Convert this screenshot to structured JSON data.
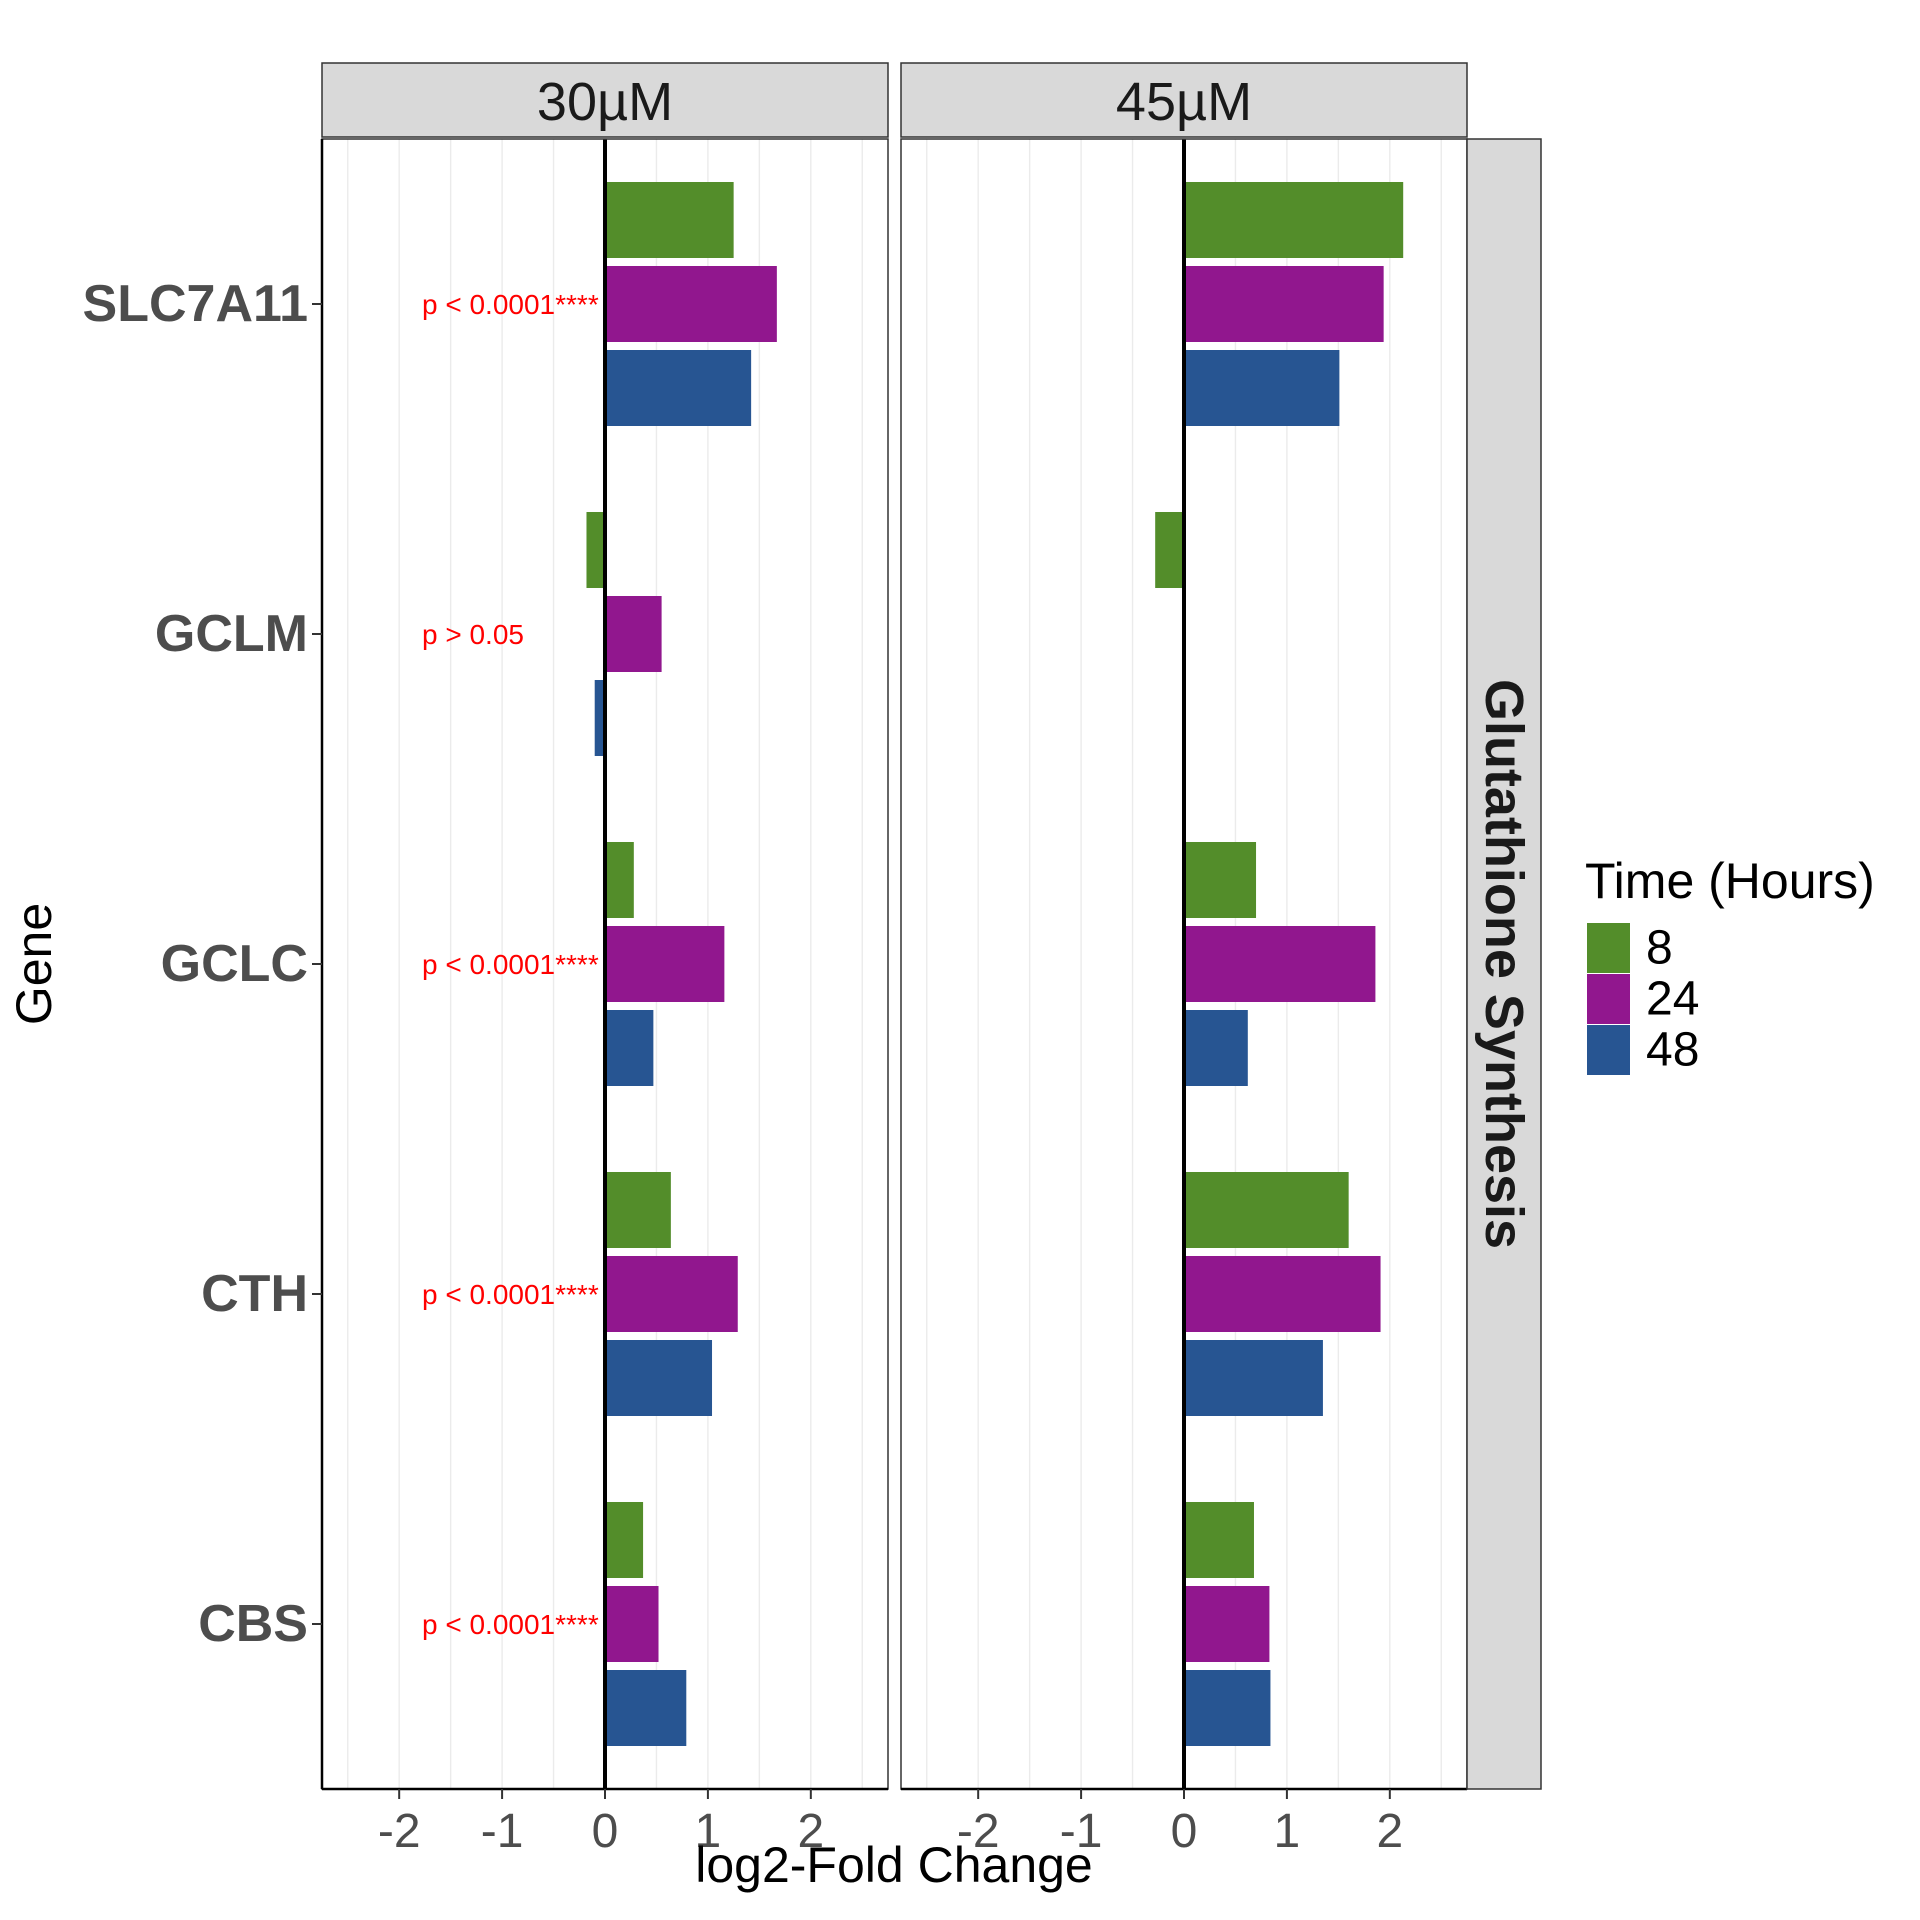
{
  "chart_data": {
    "type": "bar",
    "orientation": "horizontal",
    "facet_columns": [
      "30µM",
      "45µM"
    ],
    "facet_row": "Glutathione Synthesis",
    "categories": [
      "SLC7A11",
      "GCLM",
      "GCLC",
      "CTH",
      "CBS"
    ],
    "xlabel": "log2-Fold Change",
    "ylabel": "Gene",
    "xlim": [
      -2.75,
      2.75
    ],
    "x_ticks": [
      -2,
      -1,
      0,
      1,
      2
    ],
    "x_tick_labels": [
      "-2",
      "-1",
      "0",
      "1",
      "2"
    ],
    "grid": true,
    "legend": {
      "title": "Time (Hours)",
      "placement": "right",
      "entries": [
        {
          "label": "8",
          "color": "#538d2a"
        },
        {
          "label": "24",
          "color": "#91178e"
        },
        {
          "label": "48",
          "color": "#275592"
        }
      ]
    },
    "panels": [
      {
        "facet": "30µM",
        "series": [
          {
            "name": "8",
            "values": [
              1.25,
              -0.18,
              0.28,
              0.64,
              0.37
            ]
          },
          {
            "name": "24",
            "values": [
              1.67,
              0.55,
              1.16,
              1.29,
              0.52
            ]
          },
          {
            "name": "48",
            "values": [
              1.42,
              -0.1,
              0.47,
              1.04,
              0.79
            ]
          }
        ],
        "annotations": [
          "p < 0.0001****",
          "p > 0.05",
          "p < 0.0001****",
          "p < 0.0001****",
          "p < 0.0001****"
        ]
      },
      {
        "facet": "45µM",
        "series": [
          {
            "name": "8",
            "values": [
              2.13,
              -0.28,
              0.7,
              1.6,
              0.68
            ]
          },
          {
            "name": "24",
            "values": [
              1.94,
              0.0,
              1.86,
              1.91,
              0.83
            ]
          },
          {
            "name": "48",
            "values": [
              1.51,
              0.0,
              0.62,
              1.35,
              0.84
            ]
          }
        ],
        "annotations": [
          "",
          "",
          "",
          "",
          ""
        ]
      }
    ]
  }
}
